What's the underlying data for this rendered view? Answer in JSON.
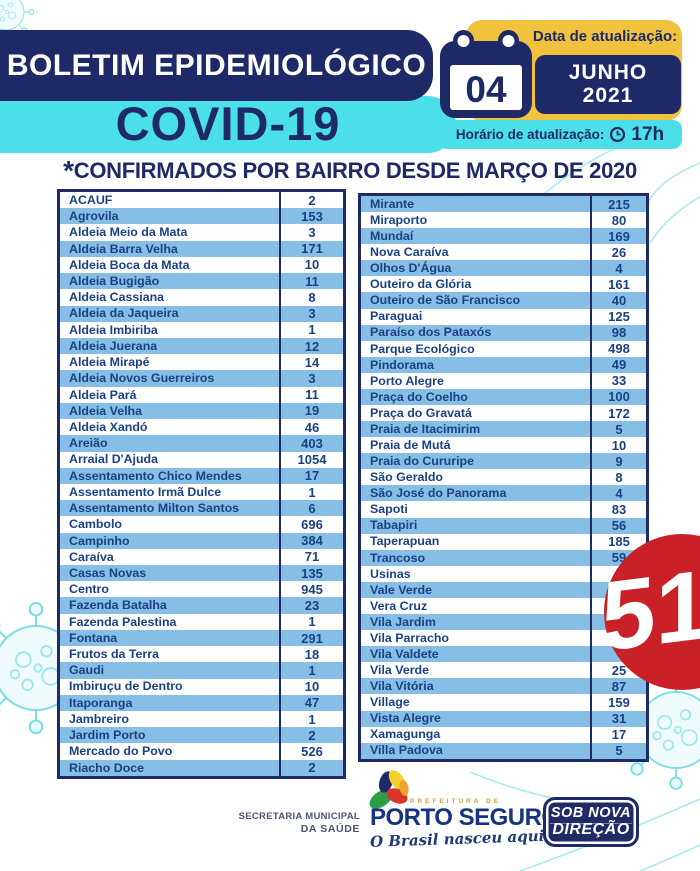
{
  "header": {
    "title": "BOLETIM EPIDEMIOLÓGICO",
    "subtitle": "COVID-19",
    "date_label": "Data de atualização:",
    "date_day": "04",
    "date_month": "JUNHO",
    "date_year": "2021",
    "time_label": "Horário de atualização:",
    "time_value": "17h"
  },
  "table_title_star": "*",
  "table_title": "CONFIRMADOS POR BAIRRO DESDE MARÇO DE 2020",
  "tables": {
    "left": {
      "first_row_shaded": false,
      "rows": [
        {
          "name": "ACAUF",
          "value": "2"
        },
        {
          "name": "Agrovila",
          "value": "153"
        },
        {
          "name": "Aldeia Meio da Mata",
          "value": "3"
        },
        {
          "name": "Aldeia Barra Velha",
          "value": "171"
        },
        {
          "name": "Aldeia Boca da Mata",
          "value": "10"
        },
        {
          "name": "Aldeia Bugigão",
          "value": "11"
        },
        {
          "name": "Aldeia Cassiana",
          "value": "8"
        },
        {
          "name": "Aldeia da Jaqueira",
          "value": "3"
        },
        {
          "name": "Aldeia Imbiriba",
          "value": "1"
        },
        {
          "name": "Aldeia Juerana",
          "value": "12"
        },
        {
          "name": "Aldeia Mirapé",
          "value": "14"
        },
        {
          "name": "Aldeia Novos Guerreiros",
          "value": "3"
        },
        {
          "name": "Aldeia Pará",
          "value": "11"
        },
        {
          "name": "Aldeia Velha",
          "value": "19"
        },
        {
          "name": "Aldeia Xandó",
          "value": "46"
        },
        {
          "name": "Areião",
          "value": "403"
        },
        {
          "name": "Arraial D'Ajuda",
          "value": "1054"
        },
        {
          "name": "Assentamento Chico Mendes",
          "value": "17"
        },
        {
          "name": "Assentamento Irmã Dulce",
          "value": "1"
        },
        {
          "name": "Assentamento Milton Santos",
          "value": "6"
        },
        {
          "name": "Cambolo",
          "value": "696"
        },
        {
          "name": "Campinho",
          "value": "384"
        },
        {
          "name": "Caraíva",
          "value": "71"
        },
        {
          "name": "Casas Novas",
          "value": "135"
        },
        {
          "name": "Centro",
          "value": "945"
        },
        {
          "name": "Fazenda Batalha",
          "value": "23"
        },
        {
          "name": "Fazenda Palestina",
          "value": "1"
        },
        {
          "name": "Fontana",
          "value": "291"
        },
        {
          "name": "Frutos da Terra",
          "value": "18"
        },
        {
          "name": "Gaudi",
          "value": "1"
        },
        {
          "name": "Imbiruçu de Dentro",
          "value": "10"
        },
        {
          "name": "Itaporanga",
          "value": "47"
        },
        {
          "name": "Jambreiro",
          "value": "1"
        },
        {
          "name": "Jardim Porto",
          "value": "2"
        },
        {
          "name": "Mercado do Povo",
          "value": "526"
        },
        {
          "name": "Riacho Doce",
          "value": "2"
        }
      ]
    },
    "right": {
      "first_row_shaded": true,
      "rows": [
        {
          "name": "Mirante",
          "value": "215"
        },
        {
          "name": "Miraporto",
          "value": "80"
        },
        {
          "name": "Mundaí",
          "value": "169"
        },
        {
          "name": "Nova Caraíva",
          "value": "26"
        },
        {
          "name": "Olhos D'Água",
          "value": "4"
        },
        {
          "name": "Outeiro da Glória",
          "value": "161"
        },
        {
          "name": "Outeiro de São Francisco",
          "value": "40"
        },
        {
          "name": "Paraguai",
          "value": "125"
        },
        {
          "name": "Paraíso dos Pataxós",
          "value": "98"
        },
        {
          "name": "Parque Ecológico",
          "value": "498"
        },
        {
          "name": "Pindorama",
          "value": "49"
        },
        {
          "name": "Porto Alegre",
          "value": "33"
        },
        {
          "name": "Praça do Coelho",
          "value": "100"
        },
        {
          "name": "Praça do Gravatá",
          "value": "172"
        },
        {
          "name": "Praia de Itacimirim",
          "value": "5"
        },
        {
          "name": "Praia de Mutá",
          "value": "10"
        },
        {
          "name": "Praia do Cururipe",
          "value": "9"
        },
        {
          "name": "São Geraldo",
          "value": "8"
        },
        {
          "name": "São José do Panorama",
          "value": "4"
        },
        {
          "name": "Sapoti",
          "value": "83"
        },
        {
          "name": "Tabapiri",
          "value": "56"
        },
        {
          "name": "Taperapuan",
          "value": "185"
        },
        {
          "name": "Trancoso",
          "value": "59"
        },
        {
          "name": "Usinas",
          "value": ""
        },
        {
          "name": "Vale Verde",
          "value": ""
        },
        {
          "name": "Vera Cruz",
          "value": ""
        },
        {
          "name": "Vila Jardim",
          "value": ""
        },
        {
          "name": "Vila Parracho",
          "value": ""
        },
        {
          "name": "Vila Valdete",
          "value": ""
        },
        {
          "name": "Vila Verde",
          "value": "25"
        },
        {
          "name": "Vila Vitória",
          "value": "87"
        },
        {
          "name": "Village",
          "value": "159"
        },
        {
          "name": "Vista Alegre",
          "value": "31"
        },
        {
          "name": "Xamagunga",
          "value": "17"
        },
        {
          "name": "Villa Padova",
          "value": "5"
        }
      ]
    }
  },
  "sticker": {
    "text": "51"
  },
  "footer": {
    "secretaria_line1": "SECRETARIA MUNICIPAL",
    "secretaria_line2": "DA SAÚDE",
    "prefeitura_label": "PREFEITURA DE",
    "city_name": "PORTO SEGURO",
    "city_slogan": "O Brasil nasceu aqui !",
    "badge_line1": "SOB NOVA",
    "badge_line2": "DIREÇÃO"
  },
  "colors": {
    "navy": "#1e2a68",
    "cyan": "#4bdfe7",
    "yellow": "#f0c23e",
    "row_blue": "#87bee5",
    "table_text": "#1a4184",
    "sticker_red": "#c92127",
    "decor_cyan": "#8fe3ec"
  }
}
